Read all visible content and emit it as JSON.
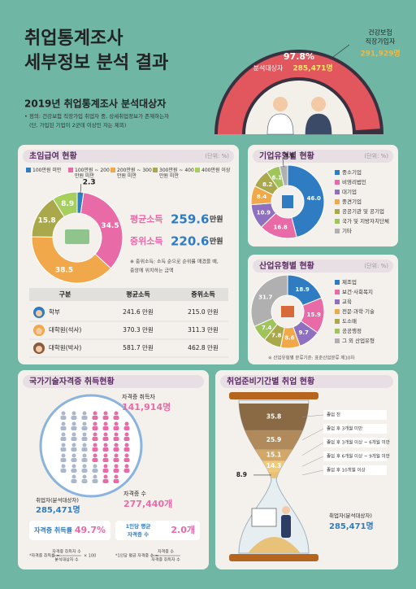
{
  "header": {
    "title_lines": [
      "취업통계조사",
      "세부정보 분석 결과"
    ],
    "subtitle": "2019년 취업통계조사 분석대상자",
    "notes": [
      "• 정의: 건강보험 직장가입 취업자 중, 상세취업정보가 존재하는자",
      "(단, 가입된 기업이 2군데 이상인 자는 제외)"
    ]
  },
  "gauge": {
    "percent": 97.8,
    "percent_label": "97.8%",
    "inner_label": "분석대상자",
    "inner_value": "285,471명",
    "outer_label_lines": [
      "건강보험",
      "직장가입자"
    ],
    "outer_value": "291,929명"
  },
  "chart_data": [
    {
      "type": "donut",
      "title": "초임급여 현황",
      "unit": "(단위: %)",
      "categories": [
        "100만원 미만",
        "100만원 ~ 200만원 미만",
        "200만원 ~ 300만원 미만",
        "300만원 ~ 400만원 미만",
        "400만원 이상"
      ],
      "values": [
        2.3,
        34.5,
        38.5,
        15.8,
        8.9
      ],
      "colors": [
        "#2f7cc2",
        "#e86aa6",
        "#f0a84a",
        "#a9a84a",
        "#a6cf5e"
      ],
      "legend": "top"
    },
    {
      "type": "donut",
      "title": "기업유형별 현황",
      "unit": "(단위: %)",
      "categories": [
        "중소기업",
        "비영리법인",
        "대기업",
        "중견기업",
        "공공기관 및 공기업",
        "국가 및 지방자치단체",
        "기타"
      ],
      "values": [
        46.0,
        16.8,
        10.9,
        8.4,
        8.2,
        6.1,
        3.6
      ],
      "value_labels": [
        "46.0",
        "16.8",
        "10.9",
        "8.4",
        "8.2",
        "6.1",
        "3.6"
      ],
      "colors": [
        "#2f7cc2",
        "#e86aa6",
        "#8e6fc0",
        "#f0a84a",
        "#a9a84a",
        "#9fc55a",
        "#b0b0b0"
      ],
      "legend": "right"
    },
    {
      "type": "donut",
      "title": "산업유형별 현황",
      "unit": "(단위: %)",
      "categories": [
        "제조업",
        "보건·사회복지",
        "교육",
        "전문·과학·기술",
        "도소매",
        "공공행정",
        "그 외 산업유형"
      ],
      "values": [
        18.9,
        15.9,
        9.7,
        8.6,
        7.8,
        7.4,
        31.7
      ],
      "colors": [
        "#2f7cc2",
        "#e86aa6",
        "#8e6fc0",
        "#f0a84a",
        "#a9a84a",
        "#9fc55a",
        "#b0b0b0"
      ],
      "legend": "right",
      "note": "※ 산업유형별 분류기준: 표준산업분류 제10차"
    },
    {
      "type": "hourglass",
      "title": "취업준비기간별 취업 현황",
      "categories": [
        "졸업 전",
        "졸업 후 3개월 미만",
        "졸업 후 3개월 이상 ~ 6개월 미만",
        "졸업 후 6개월 이상 ~ 9개월 미만",
        "졸업 후 10개월 이상"
      ],
      "values": [
        35.8,
        25.9,
        15.1,
        14.3,
        8.9
      ],
      "colors": [
        "#8a6a45",
        "#b08a5a",
        "#d3a766",
        "#f0c979",
        "#e9c27a"
      ],
      "total_label": "취업자(분석대상자)",
      "total_value": "285,471명"
    }
  ],
  "income": {
    "stats": [
      {
        "label": "평균소득",
        "value": "259.6",
        "unit": "만원"
      },
      {
        "label": "중위소득",
        "value": "220.6",
        "unit": "만원"
      }
    ],
    "note_lines": [
      "※ 중위소득: 소득 순으로 순위를 매겼을 때,",
      "중앙에 위치하는 금액"
    ],
    "table": {
      "header": [
        "구분",
        "평균소득",
        "중위소득"
      ],
      "rows": [
        [
          "학부",
          "241.6 만원",
          "215.0 만원"
        ],
        [
          "대학원(석사)",
          "370.3 만원",
          "311.3 만원"
        ],
        [
          "대학원(박사)",
          "581.7 만원",
          "462.8 만원"
        ]
      ]
    }
  },
  "certificate": {
    "title": "국가기술자격증 취득현황",
    "holders_label": "자격증 취득자",
    "holders_value": "141,914명",
    "employed_label": "취업자(분석대상자)",
    "employed_value": "285,471명",
    "count_label": "자격증 수",
    "count_value": "277,440개",
    "rate": {
      "label": "자격증 취득률",
      "value": "49.7%"
    },
    "average": {
      "label_lines": [
        "1인당 평균",
        "자격증 수"
      ],
      "value": "2.0개"
    },
    "formulas": [
      {
        "lhs": "*자격증 취득률 =",
        "numerator": "자격증 취득자 수",
        "denominator": "분석대상자 수",
        "suffix": "× 100"
      },
      {
        "lhs": "*1인당 평균 자격증 수 =",
        "numerator": "자격증 수",
        "denominator": "자격증 취득자 수"
      }
    ]
  }
}
